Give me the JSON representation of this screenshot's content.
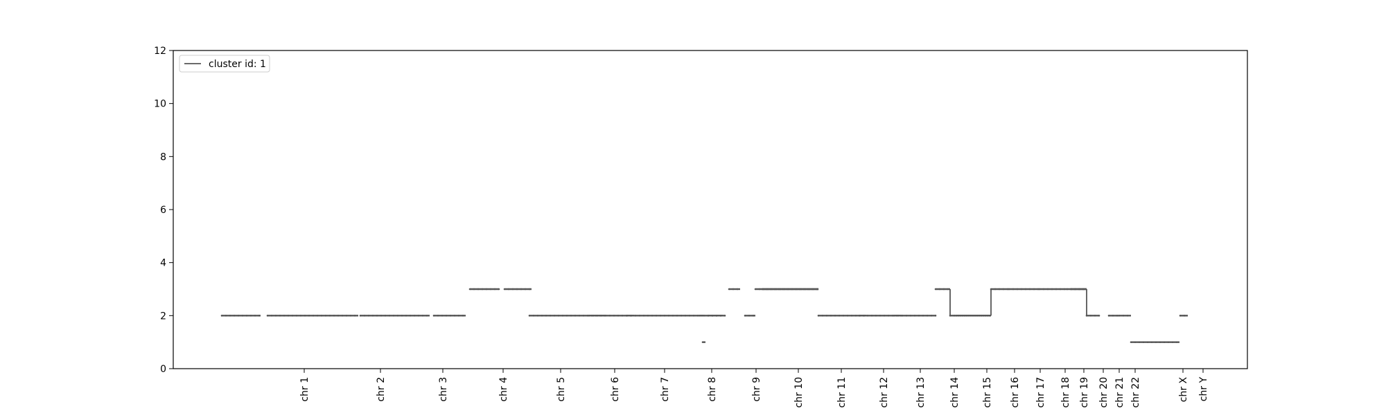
{
  "chart_data": {
    "type": "line",
    "title": "",
    "xlabel": "",
    "ylabel": "",
    "ylim": [
      0,
      12
    ],
    "yticks": [
      0,
      2,
      4,
      6,
      8,
      10,
      12
    ],
    "grid": false,
    "legend": {
      "placement": "top-left",
      "entries": [
        "cluster id: 1"
      ]
    },
    "xtick_labels": [
      "chr 1",
      "chr 2",
      "chr 3",
      "chr 4",
      "chr 5",
      "chr 6",
      "chr 7",
      "chr 8",
      "chr 9",
      "chr 10",
      "chr 11",
      "chr 12",
      "chr 13",
      "chr 14",
      "chr 15",
      "chr 16",
      "chr 17",
      "chr 18",
      "chr 19",
      "chr 20",
      "chr 21",
      "chr 22",
      "chr X",
      "chr Y"
    ],
    "series": [
      {
        "name": "cluster id: 1",
        "color": "#555555",
        "segments": [
          {
            "chrom": "chr 1",
            "copy_number": [
              2,
              2
            ]
          },
          {
            "chrom": "chr 2",
            "copy_number": [
              2
            ]
          },
          {
            "chrom": "chr 3",
            "copy_number": [
              2
            ]
          },
          {
            "chrom": "chr 4",
            "copy_number": [
              3,
              3
            ]
          },
          {
            "chrom": "chr 5",
            "copy_number": [
              2
            ]
          },
          {
            "chrom": "chr 6",
            "copy_number": [
              2
            ]
          },
          {
            "chrom": "chr 7",
            "copy_number": [
              2
            ]
          },
          {
            "chrom": "chr 8",
            "copy_number": [
              2,
              1,
              2
            ]
          },
          {
            "chrom": "chr 9",
            "copy_number": [
              3,
              2,
              3
            ]
          },
          {
            "chrom": "chr 10",
            "copy_number": [
              3
            ]
          },
          {
            "chrom": "chr 11",
            "copy_number": [
              2
            ]
          },
          {
            "chrom": "chr 12",
            "copy_number": [
              2
            ]
          },
          {
            "chrom": "chr 13",
            "copy_number": [
              2
            ]
          },
          {
            "chrom": "chr 14",
            "copy_number": [
              3,
              2
            ]
          },
          {
            "chrom": "chr 15",
            "copy_number": [
              2,
              3
            ]
          },
          {
            "chrom": "chr 16",
            "copy_number": [
              3
            ]
          },
          {
            "chrom": "chr 17",
            "copy_number": [
              3
            ]
          },
          {
            "chrom": "chr 18",
            "copy_number": [
              3
            ]
          },
          {
            "chrom": "chr 19",
            "copy_number": [
              3,
              2
            ]
          },
          {
            "chrom": "chr 20",
            "copy_number": [
              2
            ]
          },
          {
            "chrom": "chr 21",
            "copy_number": [
              2
            ]
          },
          {
            "chrom": "chr 22",
            "copy_number": [
              1
            ]
          },
          {
            "chrom": "chr X",
            "copy_number": [
              2
            ]
          },
          {
            "chrom": "chr Y",
            "copy_number": []
          }
        ]
      }
    ]
  }
}
